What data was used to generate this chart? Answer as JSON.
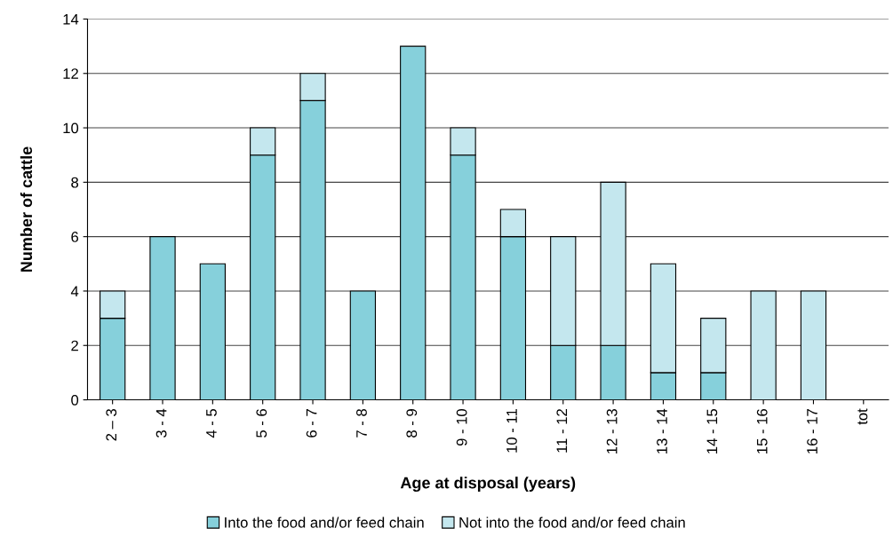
{
  "chart_data": {
    "type": "bar",
    "stacked": true,
    "xlabel": "Age at disposal (years)",
    "ylabel": "Number of cattle",
    "categories": [
      "2 – 3",
      "3 - 4",
      "4 - 5",
      "5 - 6",
      "6 - 7",
      "7 - 8",
      "8 - 9",
      "9 - 10",
      "10 - 11",
      "11 - 12",
      "12 - 13",
      "13 - 14",
      "14 - 15",
      "15 - 16",
      "16 - 17",
      "tot"
    ],
    "series": [
      {
        "name": "Into the food and/or feed chain",
        "color": "#86d0db",
        "values": [
          3,
          6,
          5,
          9,
          11,
          4,
          13,
          9,
          6,
          2,
          2,
          1,
          1,
          0,
          0,
          null
        ]
      },
      {
        "name": "Not into the food and/or feed chain",
        "color": "#c4e7ee",
        "values": [
          1,
          0,
          0,
          1,
          1,
          0,
          0,
          1,
          1,
          4,
          6,
          4,
          2,
          4,
          4,
          null
        ]
      }
    ],
    "ylim": [
      0,
      14
    ],
    "yticks": [
      0,
      2,
      4,
      6,
      8,
      10,
      12,
      14
    ],
    "grid": "y",
    "legend": "bottom"
  }
}
